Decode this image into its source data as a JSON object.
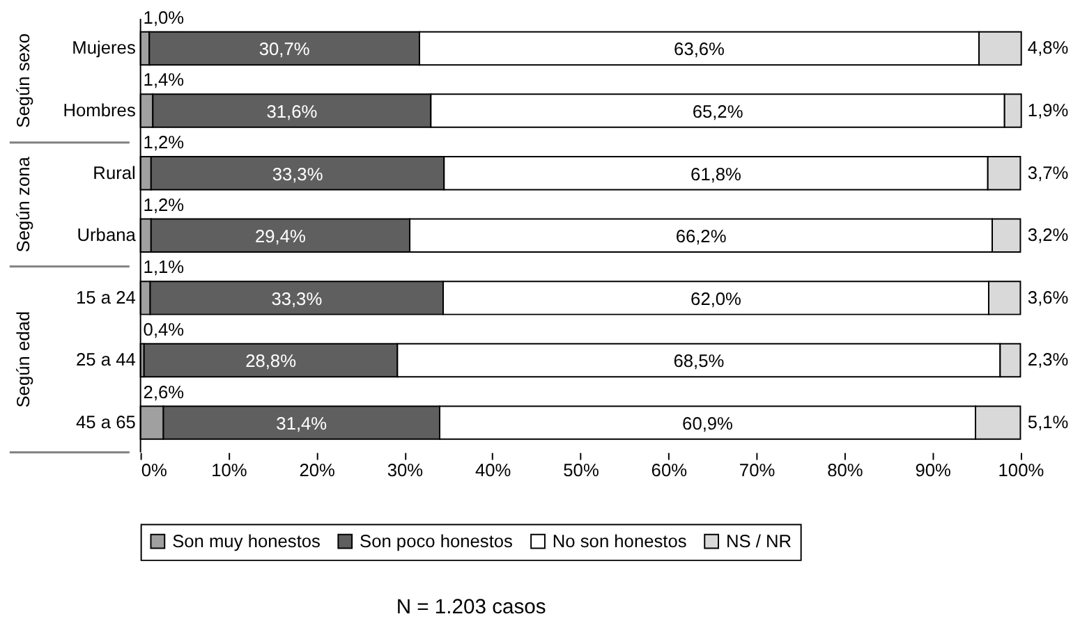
{
  "chart_data": {
    "type": "bar",
    "orientation": "horizontal",
    "stacked": true,
    "categories": [
      "Mujeres",
      "Hombres",
      "Rural",
      "Urbana",
      "15 a 24",
      "25 a 44",
      "45 a 65"
    ],
    "series": [
      {
        "name": "Son muy honestos",
        "color": "#a0a0a0",
        "values": [
          1.0,
          1.4,
          1.2,
          1.2,
          1.1,
          0.4,
          2.6
        ],
        "value_labels": [
          "1,0%",
          "1,4%",
          "1,2%",
          "1,2%",
          "1,1%",
          "0,4%",
          "2,6%"
        ]
      },
      {
        "name": "Son poco honestos",
        "color": "#5f5f5f",
        "values": [
          30.7,
          31.6,
          33.3,
          29.4,
          33.3,
          28.8,
          31.4
        ],
        "value_labels": [
          "30,7%",
          "31,6%",
          "33,3%",
          "29,4%",
          "33,3%",
          "28,8%",
          "31,4%"
        ]
      },
      {
        "name": "No son honestos",
        "color": "#ffffff",
        "values": [
          63.6,
          65.2,
          61.8,
          66.2,
          62.0,
          68.5,
          60.9
        ],
        "value_labels": [
          "63,6%",
          "65,2%",
          "61,8%",
          "66,2%",
          "62,0%",
          "68,5%",
          "60,9%"
        ]
      },
      {
        "name": "NS / NR",
        "color": "#d9d9d9",
        "values": [
          4.8,
          1.9,
          3.7,
          3.2,
          3.6,
          2.3,
          5.1
        ],
        "value_labels": [
          "4,8%",
          "1,9%",
          "3,7%",
          "3,2%",
          "3,6%",
          "2,3%",
          "5,1%"
        ]
      }
    ],
    "xlim": [
      0,
      100.2
    ],
    "xticks": [
      {
        "value": 0,
        "label": "0%"
      },
      {
        "value": 10,
        "label": "10%"
      },
      {
        "value": 20,
        "label": "20%"
      },
      {
        "value": 30,
        "label": "30%"
      },
      {
        "value": 40,
        "label": "40%"
      },
      {
        "value": 50,
        "label": "50%"
      },
      {
        "value": 60,
        "label": "60%"
      },
      {
        "value": 70,
        "label": "70%"
      },
      {
        "value": 80,
        "label": "80%"
      },
      {
        "value": 90,
        "label": "90%"
      },
      {
        "value": 100,
        "label": "100%"
      }
    ],
    "grid": false,
    "legend": "bottom",
    "annotations": [
      "Según sexo",
      "Según zona",
      "Según edad",
      "N = 1.203 casos"
    ]
  }
}
